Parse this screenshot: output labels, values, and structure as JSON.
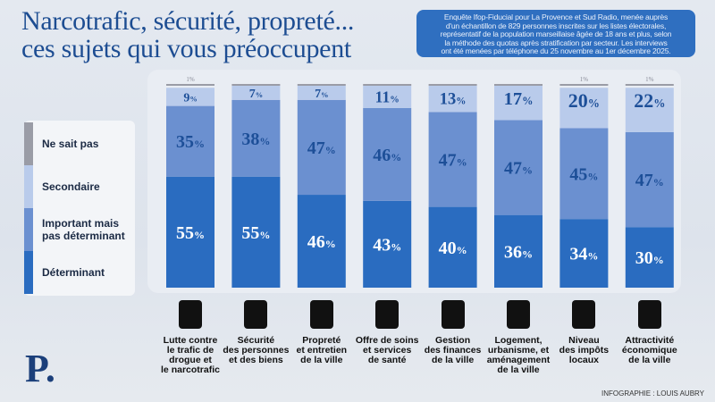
{
  "title": "Narcotrafic, sécurité, propreté... ces sujets qui vous préoccupent",
  "title_lines": [
    "Narcotrafic, sécurité, propreté...",
    "ces sujets qui vous préoccupent"
  ],
  "note_lines": [
    "Enquête Ifop-Fiducial pour La Provence et Sud Radio, menée auprès",
    "d'un échantillon de 829 personnes inscrites sur les listes électorales,",
    "représentatif de la population marseillaise âgée de 18 ans et plus, selon",
    "la méthode des quotas après stratification par secteur. Les interviews",
    "ont été menées par téléphone du 25 novembre au 1er décembre 2025."
  ],
  "credit": "INFOGRAPHIE : LOUIS AUBRY",
  "logo": "P.",
  "chart_data": {
    "type": "stacked-bar",
    "unit": "%",
    "categories": [
      "Lutte contre le trafic de drogue et le narcotrafic",
      "Sécurité des personnes et des biens",
      "Propreté et entretien de la ville",
      "Offre de soins et services de santé",
      "Gestion des finances de la ville",
      "Logement, urbanisme, et aménagement de la ville",
      "Niveau des impôts locaux",
      "Attractivité économique de la ville"
    ],
    "category_lines": [
      [
        "Lutte contre",
        "le trafic de",
        "drogue et",
        "le narcotrafic"
      ],
      [
        "Sécurité",
        "des personnes",
        "et des biens"
      ],
      [
        "Propreté",
        "et entretien",
        "de la ville"
      ],
      [
        "Offre de soins",
        "et services",
        "de santé"
      ],
      [
        "Gestion",
        "des finances",
        "de la ville"
      ],
      [
        "Logement,",
        "urbanisme, et",
        "aménagement",
        "de la ville"
      ],
      [
        "Niveau",
        "des impôts",
        "locaux"
      ],
      [
        "Attractivité",
        "économique",
        "de la ville"
      ]
    ],
    "icons": [
      "syringe-cross-icon",
      "police-officer-icon",
      "trash-can-icon",
      "first-aid-kit-icon",
      "euro-coins-icon",
      "house-icon",
      "tax-document-icon",
      "plant-hand-icon"
    ],
    "series": [
      {
        "name": "Déterminant",
        "color": "#2a6cc0",
        "values": [
          55,
          55,
          46,
          43,
          40,
          36,
          34,
          30
        ]
      },
      {
        "name": "Important mais pas déterminant",
        "color": "#6b90d0",
        "values": [
          35,
          38,
          47,
          46,
          47,
          47,
          45,
          47
        ]
      },
      {
        "name": "Secondaire",
        "color": "#b9cbeb",
        "values": [
          9,
          7,
          7,
          11,
          13,
          17,
          20,
          22
        ]
      },
      {
        "name": "Ne sait pas",
        "color": "#9a9ca6",
        "values": [
          1,
          0,
          0,
          0,
          0,
          0,
          1,
          1
        ]
      }
    ],
    "legend_placement": "left",
    "ylim": [
      0,
      100
    ]
  }
}
